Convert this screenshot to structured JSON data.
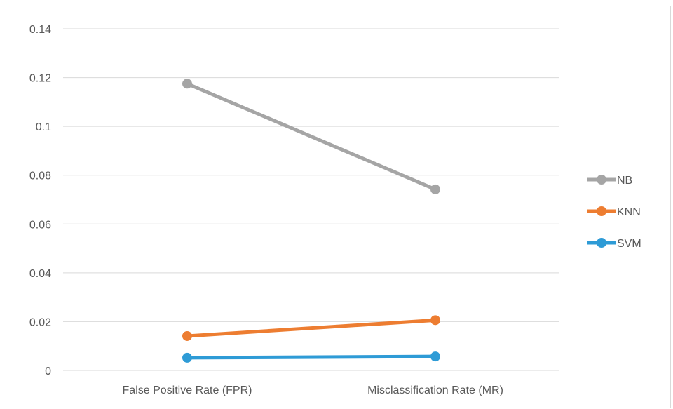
{
  "chart_data": {
    "type": "line",
    "categories": [
      "False Positive Rate (FPR)",
      "Misclassification Rate (MR)"
    ],
    "series": [
      {
        "name": "NB",
        "values": [
          0.1175,
          0.0742
        ],
        "color": "#a5a5a5"
      },
      {
        "name": "KNN",
        "values": [
          0.0141,
          0.0206
        ],
        "color": "#ed7d31"
      },
      {
        "name": "SVM",
        "values": [
          0.0052,
          0.0057
        ],
        "color": "#2e9bd6"
      }
    ],
    "ylim": [
      0,
      0.14
    ],
    "yticks": [
      "0",
      "0.02",
      "0.04",
      "0.06",
      "0.08",
      "0.1",
      "0.12",
      "0.14"
    ],
    "grid": true,
    "legend_position": "right",
    "title": "",
    "xlabel": "",
    "ylabel": ""
  }
}
